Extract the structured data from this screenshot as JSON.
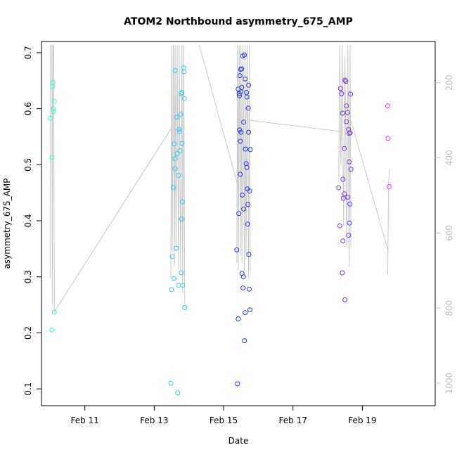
{
  "chart_data": {
    "type": "scatter",
    "title": "ATOM2 Northbound asymmetry_675_AMP",
    "xlabel": "Date",
    "ylabel": "asymmetry_675_AMP",
    "xlim": [
      9.75,
      21.1
    ],
    "ylim": [
      0.07,
      0.72
    ],
    "x_ticks": [
      {
        "value": 11,
        "label": "Feb 11"
      },
      {
        "value": 13,
        "label": "Feb 13"
      },
      {
        "value": 15,
        "label": "Feb 15"
      },
      {
        "value": 17,
        "label": "Feb 17"
      },
      {
        "value": 19,
        "label": "Feb 19"
      }
    ],
    "y_ticks": [
      0.1,
      0.2,
      0.3,
      0.4,
      0.5,
      0.6,
      0.7
    ],
    "y2_ticks": [
      200,
      400,
      600,
      800,
      1000
    ],
    "y2lim": [
      90,
      1060
    ],
    "grid": false,
    "legend": "none",
    "secondary_color": "#c8c8c8",
    "series": [
      {
        "color": "#33ffcc",
        "points": [
          [
            10.0,
            0.583
          ],
          [
            10.05,
            0.205
          ],
          [
            10.05,
            0.513
          ],
          [
            10.07,
            0.64
          ],
          [
            10.08,
            0.647
          ],
          [
            10.09,
            0.6
          ],
          [
            10.1,
            0.595
          ],
          [
            10.12,
            0.613
          ],
          [
            10.12,
            0.237
          ]
        ]
      },
      {
        "color": "#33ccee",
        "points": [
          [
            13.48,
            0.11
          ],
          [
            13.5,
            0.277
          ],
          [
            13.52,
            0.336
          ],
          [
            13.55,
            0.459
          ],
          [
            13.57,
            0.297
          ],
          [
            13.58,
            0.537
          ],
          [
            13.6,
            0.493
          ],
          [
            13.6,
            0.511
          ],
          [
            13.6,
            0.668
          ],
          [
            13.63,
            0.351
          ],
          [
            13.65,
            0.585
          ],
          [
            13.66,
            0.52
          ],
          [
            13.68,
            0.093
          ],
          [
            13.7,
            0.285
          ],
          [
            13.7,
            0.481
          ],
          [
            13.72,
            0.563
          ],
          [
            13.73,
            0.559
          ],
          [
            13.74,
            0.525
          ],
          [
            13.76,
            0.59
          ],
          [
            13.78,
            0.627
          ],
          [
            13.78,
            0.307
          ],
          [
            13.79,
            0.403
          ],
          [
            13.8,
            0.538
          ],
          [
            13.8,
            0.629
          ],
          [
            13.81,
            0.434
          ],
          [
            13.82,
            0.285
          ],
          [
            13.85,
            0.673
          ],
          [
            13.86,
            0.666
          ],
          [
            13.87,
            0.618
          ],
          [
            13.88,
            0.245
          ]
        ]
      },
      {
        "color": "#2233ee",
        "points": [
          [
            15.38,
            0.348
          ],
          [
            15.4,
            0.109
          ],
          [
            15.42,
            0.225
          ],
          [
            15.42,
            0.635
          ],
          [
            15.44,
            0.413
          ],
          [
            15.45,
            0.627
          ],
          [
            15.46,
            0.623
          ],
          [
            15.46,
            0.562
          ],
          [
            15.47,
            0.659
          ],
          [
            15.48,
            0.542
          ],
          [
            15.48,
            0.483
          ],
          [
            15.49,
            0.67
          ],
          [
            15.5,
            0.558
          ],
          [
            15.5,
            0.63
          ],
          [
            15.52,
            0.671
          ],
          [
            15.52,
            0.638
          ],
          [
            15.53,
            0.306
          ],
          [
            15.54,
            0.446
          ],
          [
            15.55,
            0.694
          ],
          [
            15.56,
            0.28
          ],
          [
            15.57,
            0.3
          ],
          [
            15.58,
            0.576
          ],
          [
            15.58,
            0.421
          ],
          [
            15.6,
            0.186
          ],
          [
            15.6,
            0.696
          ],
          [
            15.62,
            0.236
          ],
          [
            15.62,
            0.653
          ],
          [
            15.63,
            0.528
          ],
          [
            15.65,
            0.502
          ],
          [
            15.66,
            0.629
          ],
          [
            15.67,
            0.621
          ],
          [
            15.67,
            0.495
          ],
          [
            15.68,
            0.457
          ],
          [
            15.69,
            0.394
          ],
          [
            15.7,
            0.429
          ],
          [
            15.71,
            0.601
          ],
          [
            15.72,
            0.642
          ],
          [
            15.72,
            0.558
          ],
          [
            15.73,
            0.34
          ],
          [
            15.74,
            0.278
          ],
          [
            15.75,
            0.453
          ],
          [
            15.76,
            0.241
          ],
          [
            15.77,
            0.527
          ]
        ]
      },
      {
        "color": "#7733ee",
        "points": [
          [
            18.32,
            0.459
          ],
          [
            18.35,
            0.391
          ],
          [
            18.37,
            0.636
          ],
          [
            18.4,
            0.627
          ],
          [
            18.42,
            0.307
          ],
          [
            18.43,
            0.592
          ],
          [
            18.44,
            0.364
          ],
          [
            18.44,
            0.474
          ],
          [
            18.45,
            0.44
          ],
          [
            18.48,
            0.529
          ],
          [
            18.48,
            0.448
          ],
          [
            18.5,
            0.651
          ],
          [
            18.5,
            0.259
          ],
          [
            18.52,
            0.649
          ],
          [
            18.54,
            0.605
          ],
          [
            18.54,
            0.577
          ],
          [
            18.57,
            0.593
          ],
          [
            18.58,
            0.442
          ],
          [
            18.6,
            0.374
          ],
          [
            18.6,
            0.563
          ],
          [
            18.62,
            0.505
          ],
          [
            18.62,
            0.556
          ],
          [
            18.63,
            0.396
          ],
          [
            18.64,
            0.43
          ],
          [
            18.65,
            0.557
          ],
          [
            18.66,
            0.626
          ],
          [
            18.67,
            0.492
          ]
        ]
      },
      {
        "color": "#ee33ee",
        "points": [
          [
            19.73,
            0.605
          ],
          [
            19.74,
            0.547
          ],
          [
            19.77,
            0.461
          ]
        ]
      }
    ],
    "secondary_lines": [
      {
        "points": [
          [
            10.0,
            720
          ],
          [
            10.01,
            100
          ],
          [
            10.05,
            100
          ],
          [
            10.06,
            790
          ],
          [
            10.08,
            100
          ],
          [
            10.1,
            100
          ],
          [
            10.12,
            810
          ]
        ]
      },
      {
        "points": [
          [
            10.12,
            810
          ],
          [
            13.5,
            320
          ]
        ]
      },
      {
        "points": [
          [
            13.48,
            720
          ],
          [
            13.5,
            100
          ],
          [
            13.52,
            650
          ],
          [
            13.55,
            100
          ],
          [
            13.58,
            690
          ],
          [
            13.6,
            100
          ],
          [
            13.63,
            650
          ],
          [
            13.66,
            100
          ],
          [
            13.7,
            700
          ],
          [
            13.72,
            100
          ],
          [
            13.76,
            700
          ],
          [
            13.8,
            100
          ],
          [
            13.82,
            760
          ],
          [
            13.85,
            100
          ],
          [
            13.88,
            790
          ]
        ]
      },
      {
        "points": [
          [
            14.3,
            100
          ],
          [
            15.4,
            470
          ]
        ]
      },
      {
        "points": [
          [
            15.38,
            680
          ],
          [
            15.4,
            100
          ],
          [
            15.42,
            700
          ],
          [
            15.45,
            100
          ],
          [
            15.48,
            660
          ],
          [
            15.5,
            100
          ],
          [
            15.53,
            680
          ],
          [
            15.56,
            100
          ],
          [
            15.6,
            700
          ],
          [
            15.62,
            100
          ],
          [
            15.65,
            670
          ],
          [
            15.68,
            100
          ],
          [
            15.72,
            720
          ],
          [
            15.74,
            100
          ],
          [
            15.77,
            700
          ]
        ]
      },
      {
        "points": [
          [
            15.77,
            300
          ],
          [
            18.4,
            330
          ]
        ]
      },
      {
        "points": [
          [
            18.32,
            450
          ],
          [
            18.35,
            100
          ],
          [
            18.38,
            420
          ],
          [
            18.42,
            100
          ],
          [
            18.46,
            580
          ],
          [
            18.5,
            130
          ],
          [
            18.55,
            640
          ],
          [
            18.58,
            100
          ],
          [
            18.62,
            690
          ],
          [
            18.65,
            100
          ],
          [
            18.67,
            640
          ]
        ]
      },
      {
        "points": [
          [
            18.67,
            300
          ],
          [
            19.75,
            650
          ]
        ]
      },
      {
        "points": [
          [
            19.73,
            710
          ],
          [
            19.76,
            460
          ],
          [
            19.78,
            430
          ]
        ]
      }
    ]
  }
}
